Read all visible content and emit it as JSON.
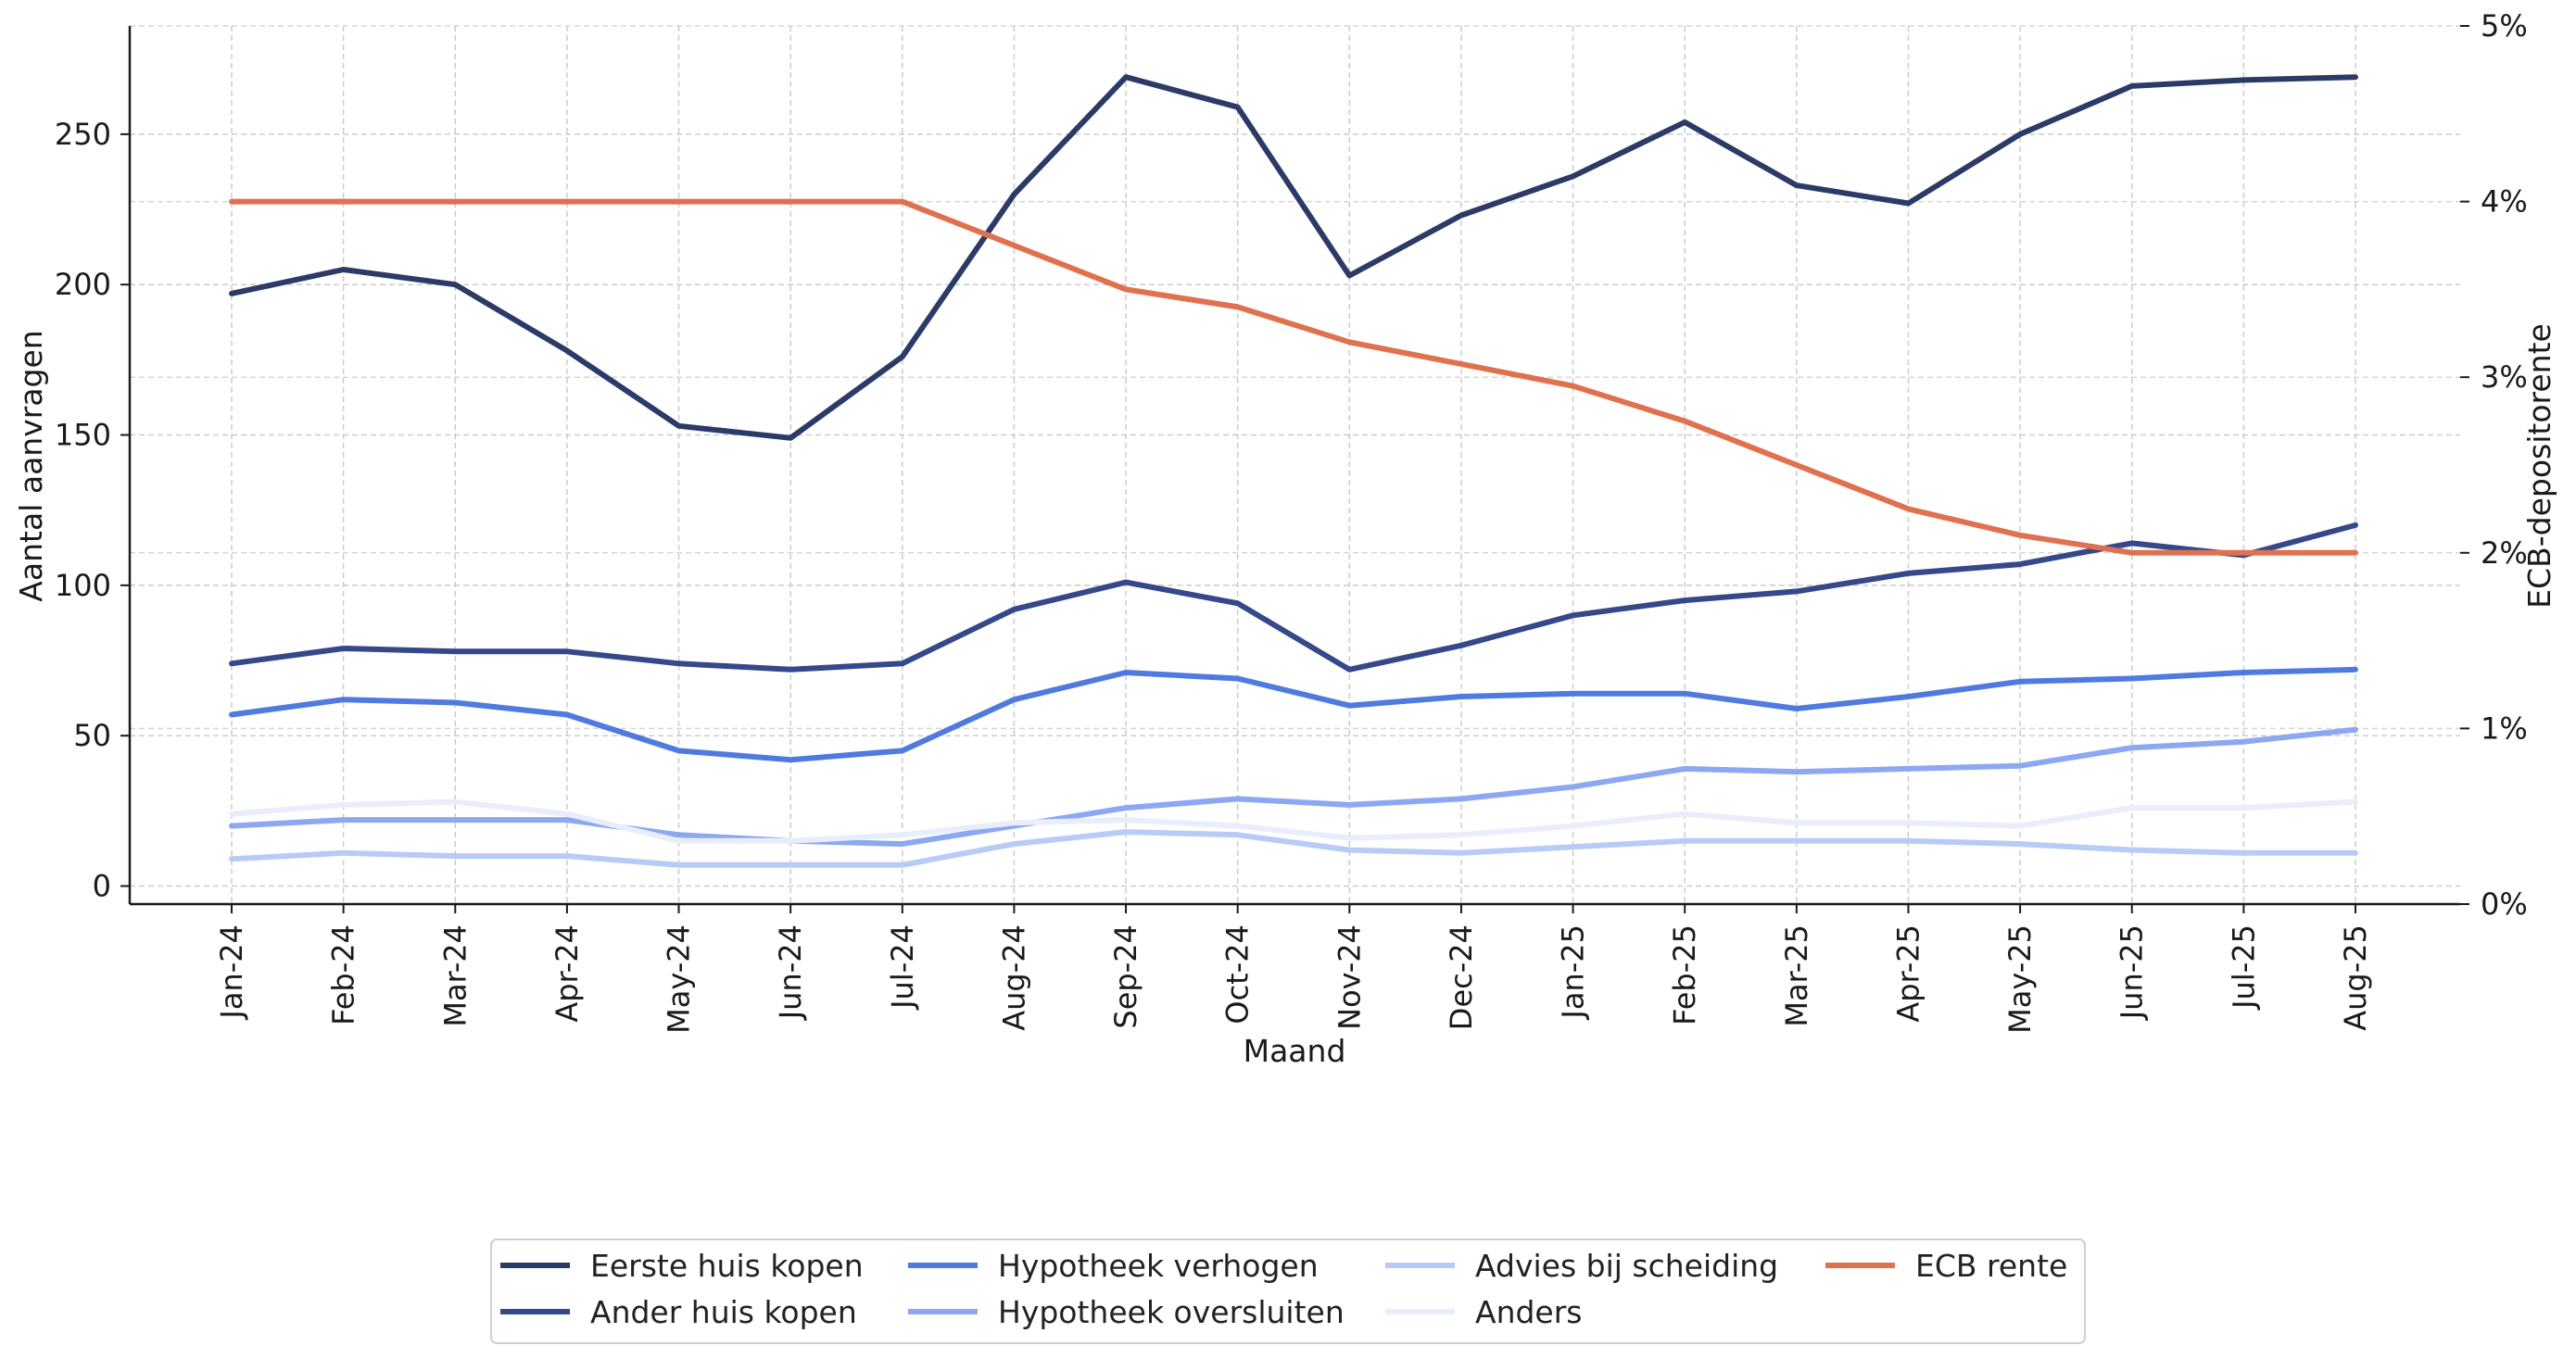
{
  "chart_data": {
    "type": "line",
    "categories": [
      "Jan-24",
      "Feb-24",
      "Mar-24",
      "Apr-24",
      "May-24",
      "Jun-24",
      "Jul-24",
      "Aug-24",
      "Sep-24",
      "Oct-24",
      "Nov-24",
      "Dec-24",
      "Jan-25",
      "Feb-25",
      "Mar-25",
      "Apr-25",
      "May-25",
      "Jun-25",
      "Jul-25",
      "Aug-25"
    ],
    "xlabel": "Maand",
    "ylabel": "Aantal aanvragen",
    "y2label": "ECB-depositorente",
    "ylim": [
      -6,
      286
    ],
    "y2lim": [
      0,
      5
    ],
    "yticks": [
      0,
      50,
      100,
      150,
      200,
      250
    ],
    "y2ticks": [
      "0%",
      "1%",
      "2%",
      "3%",
      "4%",
      "5%"
    ],
    "grid": true,
    "legend_position": "bottom-center",
    "series": [
      {
        "name": "Eerste huis kopen",
        "color": "#2b3a67",
        "axis": "left",
        "values": [
          197,
          205,
          200,
          178,
          153,
          149,
          176,
          230,
          269,
          259,
          203,
          223,
          236,
          254,
          233,
          227,
          250,
          266,
          268,
          269
        ]
      },
      {
        "name": "Ander huis kopen",
        "color": "#34488a",
        "axis": "left",
        "values": [
          74,
          79,
          78,
          78,
          74,
          72,
          74,
          92,
          101,
          94,
          72,
          80,
          90,
          95,
          98,
          104,
          107,
          114,
          110,
          120
        ]
      },
      {
        "name": "Hypotheek verhogen",
        "color": "#4f7ae0",
        "axis": "left",
        "values": [
          57,
          62,
          61,
          57,
          45,
          42,
          45,
          62,
          71,
          69,
          60,
          63,
          64,
          64,
          59,
          63,
          68,
          69,
          71,
          72
        ]
      },
      {
        "name": "Hypotheek oversluiten",
        "color": "#8ca8f2",
        "axis": "left",
        "values": [
          20,
          22,
          22,
          22,
          17,
          15,
          14,
          20,
          26,
          29,
          27,
          29,
          33,
          39,
          38,
          39,
          40,
          46,
          48,
          52
        ]
      },
      {
        "name": "Advies bij scheiding",
        "color": "#b8cbf6",
        "axis": "left",
        "values": [
          9,
          11,
          10,
          10,
          7,
          7,
          7,
          14,
          18,
          17,
          12,
          11,
          13,
          15,
          15,
          15,
          14,
          12,
          11,
          11
        ]
      },
      {
        "name": "Anders",
        "color": "#e8eefc",
        "axis": "left",
        "values": [
          24,
          27,
          28,
          24,
          15,
          15,
          17,
          21,
          22,
          20,
          16,
          17,
          20,
          24,
          21,
          21,
          20,
          26,
          26,
          28
        ]
      },
      {
        "name": "ECB rente",
        "color": "#e0714f",
        "axis": "right",
        "x": [
          "Jan-24",
          "Jul-24",
          "Aug-24",
          "Sep-24",
          "Oct-24",
          "Nov-24",
          "Jan-25",
          "Feb-25",
          "Mar-25",
          "Apr-25",
          "May-25",
          "Jun-25",
          "Jul-25",
          "Aug-25"
        ],
        "values": [
          4.0,
          4.0,
          3.75,
          3.5,
          3.4,
          3.2,
          2.95,
          2.75,
          2.5,
          2.25,
          2.1,
          2.0,
          2.0,
          2.0
        ]
      }
    ]
  }
}
